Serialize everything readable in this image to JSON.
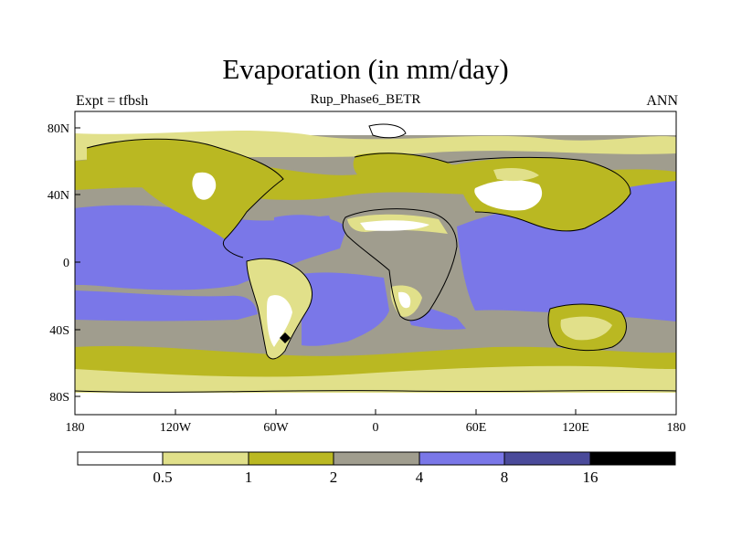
{
  "title": "Evaporation (in mm/day)",
  "subtitle": "Rup_Phase6_BETR",
  "left_label": "Expt = tfbsh",
  "right_label": "ANN",
  "lat_ticks": [
    "80N",
    "40N",
    "0",
    "40S",
    "80S"
  ],
  "lon_ticks": [
    "180",
    "120W",
    "60W",
    "0",
    "60E",
    "120E",
    "180"
  ],
  "legend": {
    "boundaries": [
      "0.5",
      "1",
      "2",
      "4",
      "8",
      "16"
    ],
    "colors": [
      "#ffffff",
      "#e1e08a",
      "#bab822",
      "#a09d8e",
      "#7a77e8",
      "#4a4a9a",
      "#000000"
    ]
  },
  "colors": {
    "lt_half": "#ffffff",
    "c1": "#e1e08a",
    "c2": "#bab822",
    "c4": "#a09d8e",
    "c8": "#7a77e8",
    "c16": "#4a4a9a",
    "cmax": "#000000"
  }
}
